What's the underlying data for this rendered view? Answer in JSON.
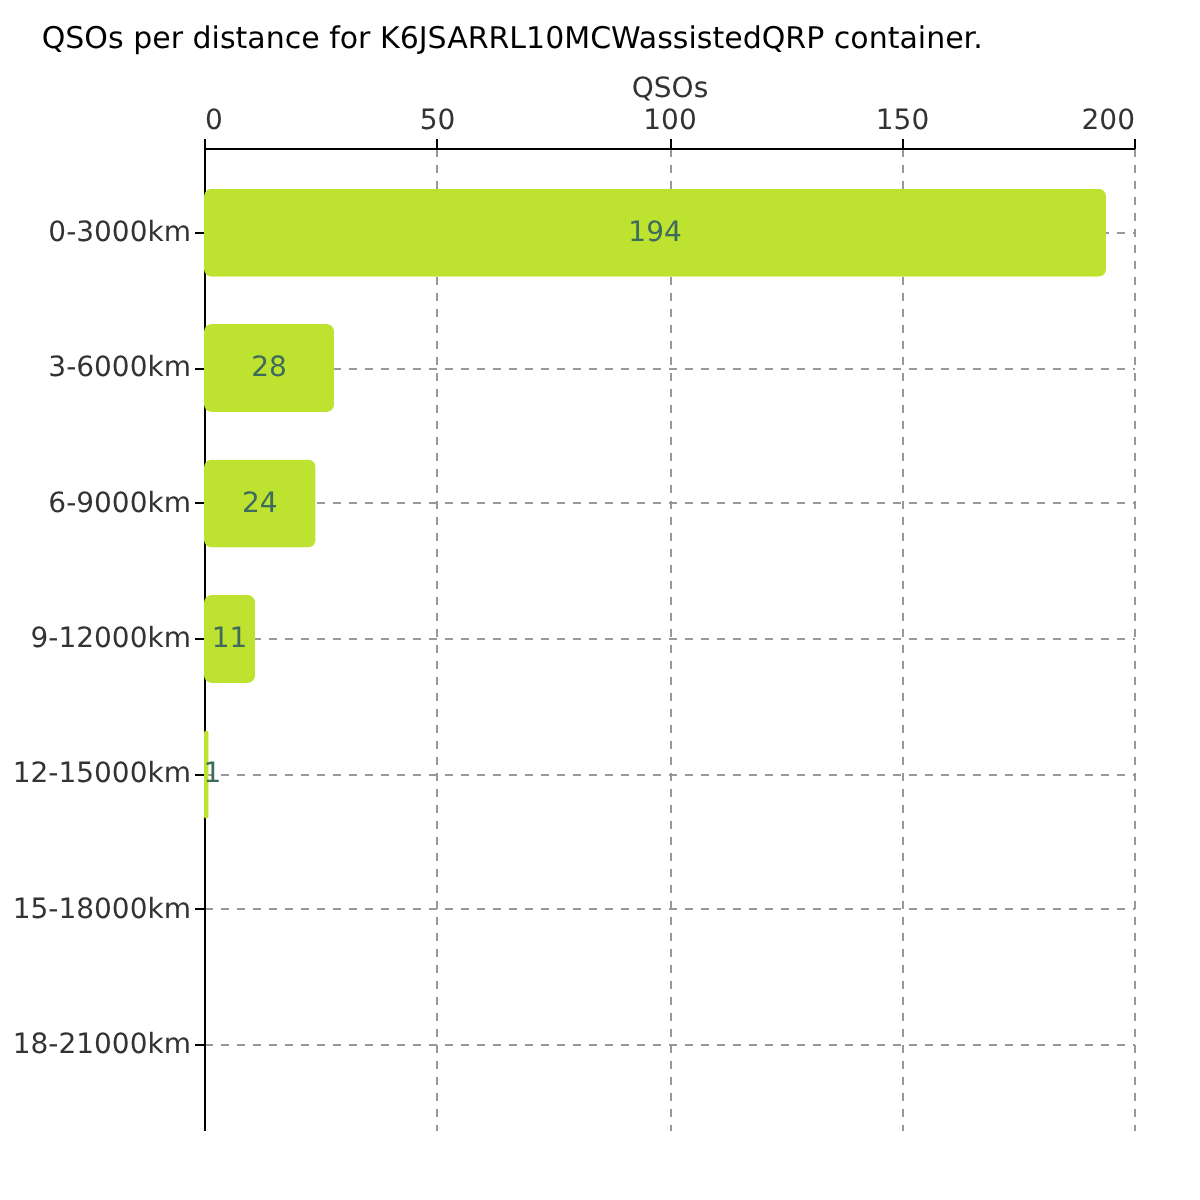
{
  "chart_data": {
    "type": "bar",
    "orientation": "horizontal",
    "title": "QSOs per distance for K6JSARRL10MCWassistedQRP container.",
    "xlabel": "QSOs",
    "categories": [
      "0-3000km",
      "3-6000km",
      "6-9000km",
      "9-12000km",
      "12-15000km",
      "15-18000km",
      "18-21000km"
    ],
    "values": [
      194,
      28,
      24,
      11,
      1,
      0,
      0
    ],
    "value_labels": [
      "194",
      "28",
      "24",
      "11",
      "1",
      null,
      null
    ],
    "color": "#bde22f",
    "xlim": [
      0,
      200
    ],
    "xticks": [
      0,
      50,
      100,
      150,
      200
    ],
    "grid": true
  }
}
